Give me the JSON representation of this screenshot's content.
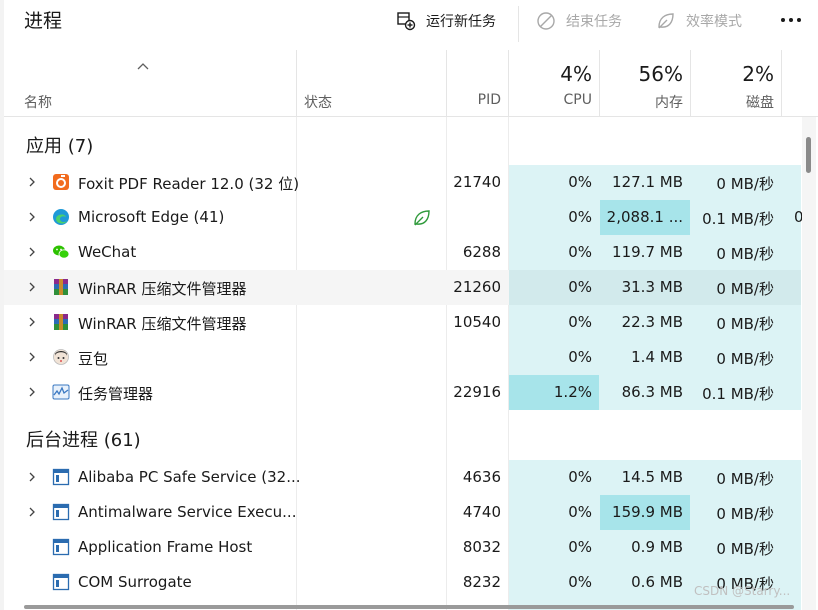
{
  "toolbar": {
    "title": "进程",
    "run_task": "运行新任务",
    "end_task": "结束任务",
    "efficiency": "效率模式",
    "more": "•••"
  },
  "header": {
    "name": "名称",
    "status": "状态",
    "pid": "PID",
    "cpu_pct": "4%",
    "cpu": "CPU",
    "mem_pct": "56%",
    "mem": "内存",
    "disk_pct": "2%",
    "disk": "磁盘"
  },
  "groups": {
    "apps": "应用 (7)",
    "background": "后台进程 (61)"
  },
  "rows": [
    {
      "name": "Foxit PDF Reader 12.0 (32 位)",
      "pid": "21740",
      "cpu": "0%",
      "mem": "127.1 MB",
      "disk": "0 MB/秒",
      "net": "",
      "icon": "foxit-icon"
    },
    {
      "name": "Microsoft Edge (41)",
      "pid": "",
      "cpu": "0%",
      "mem": "2,088.1 ...",
      "disk": "0.1 MB/秒",
      "net": "0",
      "icon": "edge-icon"
    },
    {
      "name": "WeChat",
      "pid": "6288",
      "cpu": "0%",
      "mem": "119.7 MB",
      "disk": "0 MB/秒",
      "net": "",
      "icon": "wechat-icon"
    },
    {
      "name": "WinRAR 压缩文件管理器",
      "pid": "21260",
      "cpu": "0%",
      "mem": "31.3 MB",
      "disk": "0 MB/秒",
      "net": "",
      "icon": "winrar-icon"
    },
    {
      "name": "WinRAR 压缩文件管理器",
      "pid": "10540",
      "cpu": "0%",
      "mem": "22.3 MB",
      "disk": "0 MB/秒",
      "net": "",
      "icon": "winrar-icon"
    },
    {
      "name": "豆包",
      "pid": "",
      "cpu": "0%",
      "mem": "1.4 MB",
      "disk": "0 MB/秒",
      "net": "",
      "icon": "doubao-icon"
    },
    {
      "name": "任务管理器",
      "pid": "22916",
      "cpu": "1.2%",
      "mem": "86.3 MB",
      "disk": "0.1 MB/秒",
      "net": "",
      "icon": "taskmgr-icon"
    },
    {
      "name": "Alibaba PC Safe Service (32...",
      "pid": "4636",
      "cpu": "0%",
      "mem": "14.5 MB",
      "disk": "0 MB/秒",
      "net": "",
      "icon": "service-icon"
    },
    {
      "name": "Antimalware Service Execu...",
      "pid": "4740",
      "cpu": "0%",
      "mem": "159.9 MB",
      "disk": "0 MB/秒",
      "net": "",
      "icon": "service-icon"
    },
    {
      "name": "Application Frame Host",
      "pid": "8032",
      "cpu": "0%",
      "mem": "0.9 MB",
      "disk": "0 MB/秒",
      "net": "",
      "icon": "service-icon"
    },
    {
      "name": "COM Surrogate",
      "pid": "8232",
      "cpu": "0%",
      "mem": "0.6 MB",
      "disk": "0 MB/秒",
      "net": "",
      "icon": "service-icon"
    }
  ],
  "watermark": "CSDN @Starry...",
  "colors": {
    "heat_light": "#dcf3f5",
    "heat_strong": "#a7e4ea",
    "hover": "#f5f5f5"
  }
}
